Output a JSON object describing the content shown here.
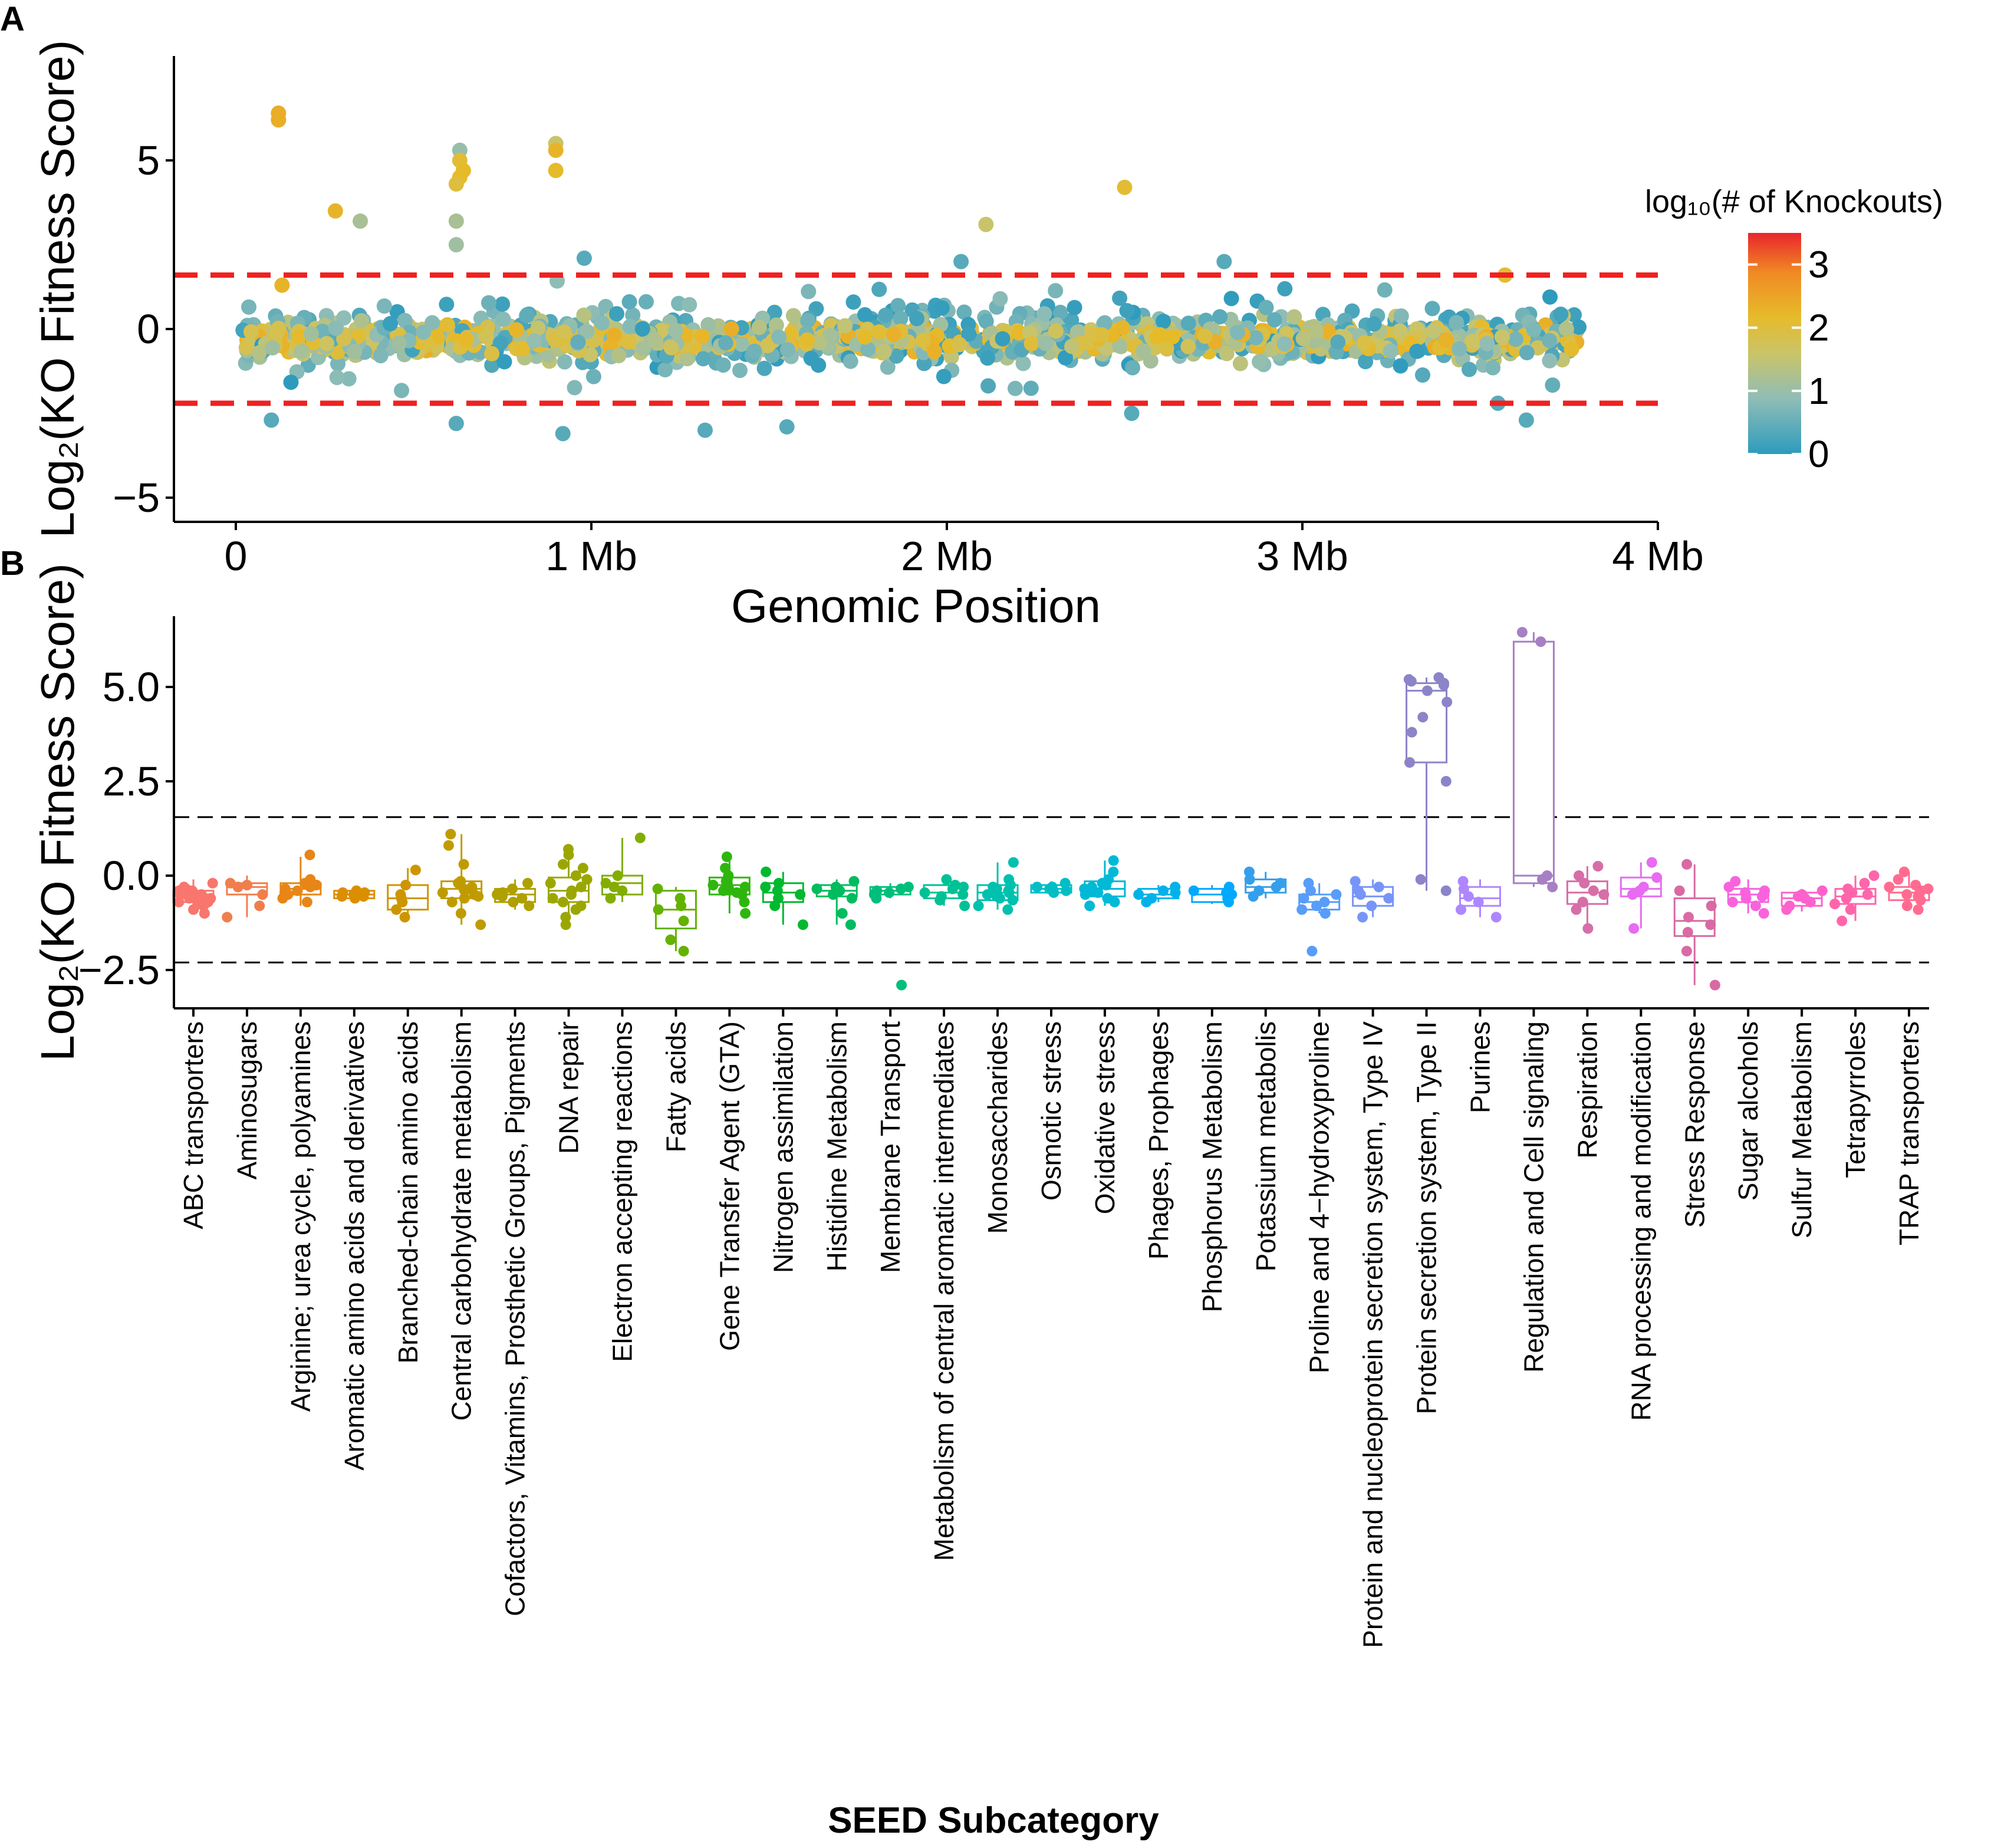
{
  "panels": {
    "a": "A",
    "b": "B"
  },
  "chart_data": [
    {
      "type": "scatter",
      "panel": "A",
      "xlabel": "Genomic Position",
      "ylabel": "Log₂(KO Fitness Score)",
      "xlim": [
        0,
        4
      ],
      "ylim": [
        -5.5,
        8
      ],
      "x_ticks": [
        {
          "value": 0,
          "label": "0"
        },
        {
          "value": 1,
          "label": "1 Mb"
        },
        {
          "value": 2,
          "label": "2 Mb"
        },
        {
          "value": 3,
          "label": "3 Mb"
        },
        {
          "value": 4,
          "label": "4 Mb"
        }
      ],
      "y_ticks": [
        {
          "value": 5,
          "label": "5"
        },
        {
          "value": 0,
          "label": "0"
        },
        {
          "value": -5,
          "label": "−5"
        }
      ],
      "thresholds": [
        1.6,
        -2.2
      ],
      "threshold_color": "#ee2222",
      "legend": {
        "title": "log₁₀(# of Knockouts)",
        "placement": "right",
        "range": [
          0,
          3.5
        ],
        "ticks": [
          {
            "value": 3,
            "label": "3"
          },
          {
            "value": 2,
            "label": "2"
          },
          {
            "value": 1,
            "label": "1"
          },
          {
            "value": 0,
            "label": "0"
          }
        ],
        "colors": [
          "#2d9bbd",
          "#8fbdb6",
          "#c9c46a",
          "#e6bb2a",
          "#f08a24",
          "#e8262c"
        ]
      },
      "highlights": [
        {
          "x": 0.12,
          "y": 6.4,
          "c": 2.3
        },
        {
          "x": 0.12,
          "y": 6.2,
          "c": 2.3
        },
        {
          "x": 0.13,
          "y": 1.3,
          "c": 2.2
        },
        {
          "x": 0.28,
          "y": 3.5,
          "c": 2.2
        },
        {
          "x": 0.35,
          "y": 3.2,
          "c": 1.0
        },
        {
          "x": 0.63,
          "y": 5.3,
          "c": 0.8
        },
        {
          "x": 0.63,
          "y": 5.0,
          "c": 2.0
        },
        {
          "x": 0.64,
          "y": 4.7,
          "c": 2.1
        },
        {
          "x": 0.63,
          "y": 4.5,
          "c": 2.1
        },
        {
          "x": 0.62,
          "y": 4.3,
          "c": 1.9
        },
        {
          "x": 0.62,
          "y": 3.2,
          "c": 1.0
        },
        {
          "x": 0.62,
          "y": 2.5,
          "c": 0.9
        },
        {
          "x": 0.9,
          "y": 5.5,
          "c": 1.4
        },
        {
          "x": 0.9,
          "y": 5.3,
          "c": 2.2
        },
        {
          "x": 0.9,
          "y": 4.7,
          "c": 2.1
        },
        {
          "x": 2.11,
          "y": 3.1,
          "c": 1.4
        },
        {
          "x": 2.5,
          "y": 4.2,
          "c": 2.0
        },
        {
          "x": 0.1,
          "y": -2.7,
          "c": 0.3
        },
        {
          "x": 0.62,
          "y": -2.8,
          "c": 0.3
        },
        {
          "x": 0.92,
          "y": -3.1,
          "c": 0.3
        },
        {
          "x": 1.32,
          "y": -3.0,
          "c": 0.3
        },
        {
          "x": 1.55,
          "y": -2.9,
          "c": 0.3
        },
        {
          "x": 3.63,
          "y": -2.7,
          "c": 0.3
        },
        {
          "x": 0.98,
          "y": 2.1,
          "c": 0.3
        },
        {
          "x": 2.78,
          "y": 2.0,
          "c": 0.3
        },
        {
          "x": 2.04,
          "y": 2.0,
          "c": 0.3
        },
        {
          "x": 3.57,
          "y": 1.6,
          "c": 2.0
        },
        {
          "x": 2.52,
          "y": -2.5,
          "c": 0.3
        },
        {
          "x": 3.55,
          "y": -2.2,
          "c": 0.3
        }
      ]
    },
    {
      "type": "box",
      "panel": "B",
      "xlabel": "SEED Subcategory",
      "ylabel": "Log₂(KO Fitness Score)",
      "ylim": [
        -3.4,
        6.8
      ],
      "y_ticks": [
        {
          "value": 5.0,
          "label": "5.0"
        },
        {
          "value": 2.5,
          "label": "2.5"
        },
        {
          "value": 0.0,
          "label": "0.0"
        },
        {
          "value": -2.5,
          "label": "−2.5"
        }
      ],
      "thresholds": [
        1.55,
        -2.3
      ],
      "categories": [
        {
          "name": "ABC transporters",
          "q1": -0.7,
          "med": -0.55,
          "q3": -0.4,
          "lo": -1.0,
          "hi": -0.1,
          "pts": [
            -0.3,
            -0.4,
            -0.45,
            -0.5,
            -0.55,
            -0.6,
            -0.65,
            -0.7,
            -0.75,
            -0.8,
            -0.9,
            -1.0,
            -0.2,
            -0.5,
            -0.6,
            -0.4,
            -0.55,
            -0.7,
            -0.35,
            -0.6
          ]
        },
        {
          "name": "Aminosugars",
          "q1": -0.5,
          "med": -0.3,
          "q3": -0.2,
          "lo": -1.1,
          "hi": 0.0,
          "pts": [
            -0.2,
            -0.3,
            -0.3,
            -0.5,
            -0.8,
            -1.1,
            -0.25
          ]
        },
        {
          "name": "Arginine; urea cycle, polyamines",
          "q1": -0.5,
          "med": -0.35,
          "q3": -0.2,
          "lo": -0.8,
          "hi": 0.5,
          "pts": [
            0.55,
            -0.2,
            -0.3,
            -0.4,
            -0.5,
            -0.6,
            -0.7,
            -0.35,
            -0.25,
            -0.1,
            -0.45
          ]
        },
        {
          "name": "Aromatic amino acids and derivatives",
          "q1": -0.6,
          "med": -0.5,
          "q3": -0.4,
          "lo": -0.7,
          "hi": -0.3,
          "pts": [
            -0.4,
            -0.45,
            -0.5,
            -0.55,
            -0.6,
            -0.5,
            -0.45,
            -0.55
          ]
        },
        {
          "name": "Branched-chain amino acids",
          "q1": -0.9,
          "med": -0.6,
          "q3": -0.25,
          "lo": -1.1,
          "hi": 0.2,
          "pts": [
            0.15,
            -0.25,
            -0.5,
            -0.7,
            -0.9,
            -1.1,
            -0.6
          ]
        },
        {
          "name": "Central carbohydrate metabolism",
          "q1": -0.6,
          "med": -0.35,
          "q3": -0.15,
          "lo": -1.3,
          "hi": 1.1,
          "pts": [
            1.1,
            0.8,
            0.3,
            -0.15,
            -0.3,
            -0.4,
            -0.5,
            -0.6,
            -0.7,
            -1.0,
            -1.3,
            -0.2,
            -0.35,
            -0.45,
            -0.55
          ]
        },
        {
          "name": "Cofactors, Vitamins, Prosthetic Groups, Pigments",
          "q1": -0.7,
          "med": -0.5,
          "q3": -0.35,
          "lo": -0.9,
          "hi": -0.1,
          "pts": [
            -0.2,
            -0.35,
            -0.5,
            -0.6,
            -0.7,
            -0.8,
            -0.45,
            -0.55
          ]
        },
        {
          "name": "DNA repair",
          "q1": -0.7,
          "med": -0.4,
          "q3": -0.05,
          "lo": -1.3,
          "hi": 0.7,
          "pts": [
            0.7,
            0.55,
            0.3,
            0.0,
            -0.1,
            -0.2,
            -0.4,
            -0.5,
            -0.7,
            -0.9,
            -1.1,
            -1.3,
            -0.3,
            -0.6,
            0.2,
            -0.8
          ]
        },
        {
          "name": "Electron accepting reactions",
          "q1": -0.5,
          "med": -0.2,
          "q3": 0.0,
          "lo": -0.7,
          "hi": 1.0,
          "pts": [
            1.0,
            0.0,
            -0.2,
            -0.4,
            -0.6,
            -0.3
          ]
        },
        {
          "name": "Fatty acids",
          "q1": -1.4,
          "med": -0.9,
          "q3": -0.4,
          "lo": -2.0,
          "hi": -0.3,
          "pts": [
            -0.35,
            -0.6,
            -0.9,
            -1.2,
            -1.7,
            -2.0,
            -0.8
          ]
        },
        {
          "name": "Gene Transfer Agent (GTA)",
          "q1": -0.5,
          "med": -0.25,
          "q3": -0.05,
          "lo": -1.0,
          "hi": 0.5,
          "pts": [
            0.5,
            0.2,
            0.0,
            -0.1,
            -0.2,
            -0.3,
            -0.4,
            -0.5,
            -0.7,
            -1.0,
            -0.15,
            -0.35,
            -0.25,
            -0.45
          ]
        },
        {
          "name": "Nitrogen assimilation",
          "q1": -0.7,
          "med": -0.45,
          "q3": -0.2,
          "lo": -1.3,
          "hi": 0.1,
          "pts": [
            0.1,
            -0.2,
            -0.4,
            -0.5,
            -0.6,
            -0.8,
            -1.3,
            -0.3
          ]
        },
        {
          "name": "Histidine Metabolism",
          "q1": -0.55,
          "med": -0.4,
          "q3": -0.25,
          "lo": -1.3,
          "hi": -0.1,
          "pts": [
            -0.15,
            -0.3,
            -0.4,
            -0.5,
            -0.6,
            -1.0,
            -1.3,
            -0.35
          ]
        },
        {
          "name": "Membrane Transport",
          "q1": -0.5,
          "med": -0.4,
          "q3": -0.3,
          "lo": -0.6,
          "hi": -0.2,
          "pts": [
            -0.3,
            -0.35,
            -0.4,
            -0.5,
            -0.6,
            -2.9,
            -0.45
          ]
        },
        {
          "name": "Metabolism of central aromatic intermediates",
          "q1": -0.6,
          "med": -0.45,
          "q3": -0.25,
          "lo": -0.8,
          "hi": 0.0,
          "pts": [
            -0.1,
            -0.25,
            -0.35,
            -0.45,
            -0.55,
            -0.65,
            -0.8,
            -0.3,
            -0.5
          ]
        },
        {
          "name": "Monosaccharides",
          "q1": -0.65,
          "med": -0.45,
          "q3": -0.25,
          "lo": -0.9,
          "hi": 0.35,
          "pts": [
            0.35,
            -0.1,
            -0.25,
            -0.35,
            -0.45,
            -0.55,
            -0.65,
            -0.8,
            -0.9,
            -0.3,
            -0.5,
            -0.6,
            -0.4
          ]
        },
        {
          "name": "Osmotic stress",
          "q1": -0.45,
          "med": -0.35,
          "q3": -0.25,
          "lo": -0.5,
          "hi": -0.15,
          "pts": [
            -0.2,
            -0.3,
            -0.35,
            -0.4,
            -0.45,
            -0.3
          ]
        },
        {
          "name": "Oxidative stress",
          "q1": -0.55,
          "med": -0.35,
          "q3": -0.15,
          "lo": -0.8,
          "hi": 0.4,
          "pts": [
            0.4,
            0.1,
            -0.1,
            -0.2,
            -0.3,
            -0.4,
            -0.5,
            -0.6,
            -0.7,
            -0.8,
            -0.25,
            -0.45,
            -0.35
          ]
        },
        {
          "name": "Phages, Prophages",
          "q1": -0.6,
          "med": -0.5,
          "q3": -0.35,
          "lo": -0.7,
          "hi": -0.25,
          "pts": [
            -0.3,
            -0.4,
            -0.5,
            -0.6,
            -0.7,
            -0.45
          ]
        },
        {
          "name": "Phosphorus Metabolism",
          "q1": -0.7,
          "med": -0.5,
          "q3": -0.35,
          "lo": -0.75,
          "hi": -0.25,
          "pts": [
            -0.3,
            -0.4,
            -0.5,
            -0.6,
            -0.7,
            -0.45
          ]
        },
        {
          "name": "Potassium metabolis",
          "q1": -0.45,
          "med": -0.3,
          "q3": -0.1,
          "lo": -0.6,
          "hi": 0.1,
          "pts": [
            0.1,
            -0.1,
            -0.2,
            -0.3,
            -0.4,
            -0.55
          ]
        },
        {
          "name": "Proline and 4−hydroxyproline",
          "q1": -0.9,
          "med": -0.7,
          "q3": -0.5,
          "lo": -1.0,
          "hi": -0.2,
          "pts": [
            -0.2,
            -0.4,
            -0.6,
            -0.7,
            -0.8,
            -0.9,
            -1.0,
            -2.0,
            -0.5
          ]
        },
        {
          "name": "Protein and nucleoprotein secretion system, Type IV",
          "q1": -0.8,
          "med": -0.55,
          "q3": -0.3,
          "lo": -1.1,
          "hi": -0.1,
          "pts": [
            -0.15,
            -0.3,
            -0.5,
            -0.6,
            -0.8,
            -1.1,
            -0.4
          ]
        },
        {
          "name": "Protein secretion system, Type II",
          "q1": 3.0,
          "med": 4.9,
          "q3": 5.1,
          "lo": -0.4,
          "hi": 5.25,
          "pts": [
            5.25,
            5.2,
            5.15,
            5.1,
            5.05,
            4.9,
            4.6,
            4.2,
            3.8,
            3.0,
            2.5,
            -0.4,
            -0.1
          ]
        },
        {
          "name": "Purines",
          "q1": -0.8,
          "med": -0.6,
          "q3": -0.3,
          "lo": -1.1,
          "hi": -0.1,
          "pts": [
            -0.15,
            -0.35,
            -0.55,
            -0.7,
            -0.9,
            -1.1
          ]
        },
        {
          "name": "Regulation and Cell signaling",
          "q1": -0.2,
          "med": 0.0,
          "q3": 6.2,
          "lo": -0.3,
          "hi": 6.45,
          "pts": [
            6.45,
            6.2,
            0.0,
            -0.3,
            -0.1
          ]
        },
        {
          "name": "Respiration",
          "q1": -0.75,
          "med": -0.45,
          "q3": -0.15,
          "lo": -1.4,
          "hi": 0.25,
          "pts": [
            0.25,
            0.0,
            -0.2,
            -0.4,
            -0.5,
            -0.7,
            -0.9,
            -1.4
          ]
        },
        {
          "name": "RNA processing and modification",
          "q1": -0.55,
          "med": -0.35,
          "q3": -0.05,
          "lo": -1.4,
          "hi": 0.35,
          "pts": [
            0.35,
            -0.05,
            -0.3,
            -0.4,
            -0.5,
            -1.4
          ]
        },
        {
          "name": "Stress Response",
          "q1": -1.6,
          "med": -1.2,
          "q3": -0.6,
          "lo": -2.9,
          "hi": 0.3,
          "pts": [
            0.3,
            -0.4,
            -0.8,
            -1.1,
            -1.3,
            -1.5,
            -2.0,
            -2.9
          ]
        },
        {
          "name": "Sugar alcohols",
          "q1": -0.7,
          "med": -0.5,
          "q3": -0.35,
          "lo": -1.0,
          "hi": -0.1,
          "pts": [
            -0.15,
            -0.3,
            -0.4,
            -0.5,
            -0.6,
            -0.7,
            -0.8,
            -1.0,
            -0.45,
            -0.55
          ]
        },
        {
          "name": "Sulfur Metabolism",
          "q1": -0.8,
          "med": -0.6,
          "q3": -0.45,
          "lo": -0.95,
          "hi": -0.35,
          "pts": [
            -0.4,
            -0.5,
            -0.6,
            -0.7,
            -0.8,
            -0.9,
            -0.55
          ]
        },
        {
          "name": "Tetrapyrroles",
          "q1": -0.75,
          "med": -0.55,
          "q3": -0.35,
          "lo": -1.2,
          "hi": 0.0,
          "pts": [
            0.0,
            -0.2,
            -0.35,
            -0.5,
            -0.6,
            -0.75,
            -0.9,
            -1.2,
            -0.45
          ]
        },
        {
          "name": "TRAP transporters",
          "q1": -0.65,
          "med": -0.45,
          "q3": -0.3,
          "lo": -0.9,
          "hi": 0.1,
          "pts": [
            0.1,
            -0.1,
            -0.25,
            -0.35,
            -0.45,
            -0.55,
            -0.65,
            -0.8,
            -0.9,
            -0.4,
            -0.5,
            -0.3
          ]
        }
      ]
    }
  ]
}
